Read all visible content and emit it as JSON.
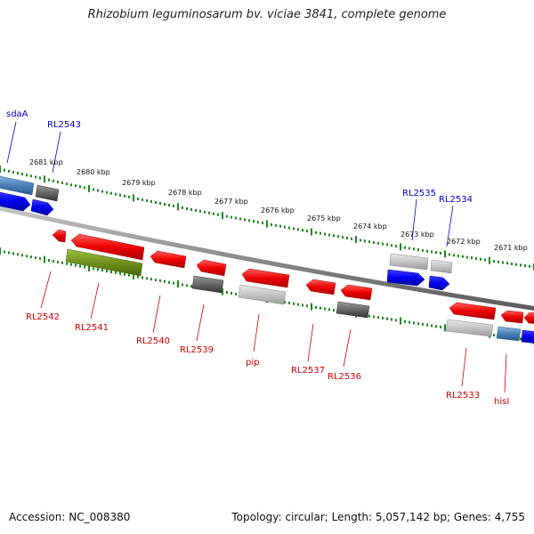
{
  "title": "Rhizobium leguminosarum bv. viciae 3841, complete genome",
  "footer": {
    "accession": "Accession: NC_008380",
    "stats": "Topology: circular; Length: 5,057,142 bp; Genes: 4,755"
  },
  "colors": {
    "forward_label": "#0000cc",
    "reverse_label": "#cc0000",
    "tick": "#1a8a1a",
    "backbone": "#888888"
  },
  "kbp_labels": [
    "2681 kbp",
    "2680 kbp",
    "2679 kbp",
    "2678 kbp",
    "2677 kbp",
    "2676 kbp",
    "2675 kbp",
    "2674 kbp",
    "2673 kbp",
    "2672 kbp",
    "2671 kbp"
  ],
  "forward_labels": [
    "sdaA",
    "RL2543",
    "RL2535",
    "RL2534"
  ],
  "reverse_labels": [
    "RL2542",
    "RL2541",
    "RL2540",
    "RL2539",
    "pip",
    "RL2537",
    "RL2536",
    "RL2533",
    "hisI"
  ]
}
